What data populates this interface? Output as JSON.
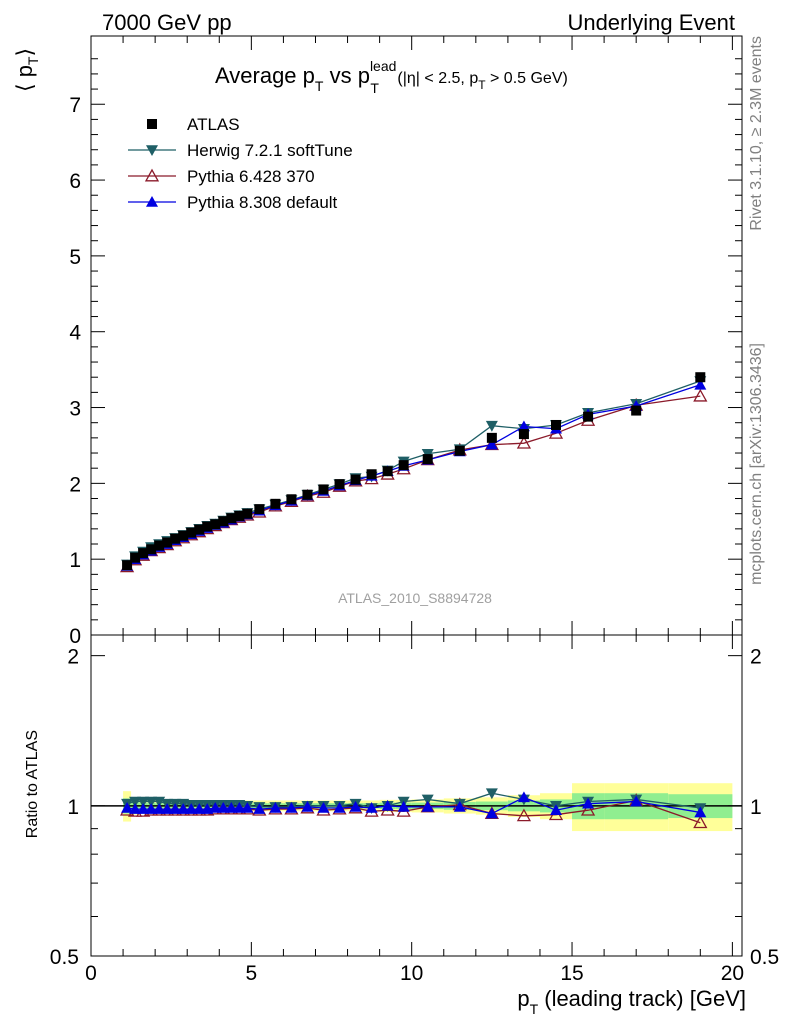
{
  "header": {
    "left": "7000 GeV pp",
    "right": "Underlying Event"
  },
  "title": {
    "main": "Average p",
    "sub": "T",
    "mid": " vs p",
    "sup": "lead",
    "sub2": "T",
    "cond_pre": " (|η| < 2.5, p",
    "cond_sub": "T",
    "cond_post": " > 0.5 GeV)"
  },
  "side_labels": {
    "rivet": "Rivet 3.1.10, ≥ 2.3M events",
    "mcplots": "mcplots.cern.ch [arXiv:1306.3436]"
  },
  "analysis_id": "ATLAS_2010_S8894728",
  "axes": {
    "ylabel_main": "⟨ p",
    "ylabel_main_sub": "T",
    "ylabel_main_close": "⟩",
    "ylabel_ratio": "Ratio to ATLAS",
    "xlabel": "p",
    "xlabel_sub": "T",
    "xlabel_rest": " (leading track) [GeV]"
  },
  "colors": {
    "atlas": "#000000",
    "herwig": "#1f5f66",
    "pythia6": "#8b1a2a",
    "pythia8": "#0000e0",
    "band_inner": "#90ee90",
    "band_outer": "#ffff99"
  },
  "chart_data": [
    {
      "type": "scatter",
      "title": "Average pT vs pT lead (|η| < 2.5, pT > 0.5 GeV)",
      "xlabel": "pT (leading track) [GeV]",
      "ylabel": "⟨ pT ⟩",
      "xlim": [
        0,
        20.3
      ],
      "ylim": [
        0,
        7.9
      ],
      "x_ticks": [
        0,
        5,
        10,
        15,
        20
      ],
      "y_ticks": [
        0,
        1,
        2,
        3,
        4,
        5,
        6,
        7
      ],
      "legend_position": "top-left",
      "x": [
        1.125,
        1.375,
        1.625,
        1.875,
        2.125,
        2.375,
        2.625,
        2.875,
        3.125,
        3.375,
        3.625,
        3.875,
        4.125,
        4.375,
        4.625,
        4.875,
        5.25,
        5.75,
        6.25,
        6.75,
        7.25,
        7.75,
        8.25,
        8.75,
        9.25,
        9.75,
        10.5,
        11.5,
        12.5,
        13.5,
        14.5,
        15.5,
        17.0,
        19.0
      ],
      "series": [
        {
          "name": "ATLAS",
          "marker": "square",
          "values": [
            0.92,
            1.02,
            1.08,
            1.13,
            1.18,
            1.22,
            1.27,
            1.31,
            1.35,
            1.39,
            1.43,
            1.46,
            1.5,
            1.54,
            1.57,
            1.6,
            1.66,
            1.73,
            1.79,
            1.85,
            1.92,
            1.99,
            2.05,
            2.12,
            2.16,
            2.24,
            2.32,
            2.43,
            2.6,
            2.65,
            2.77,
            2.88,
            2.96,
            3.4
          ]
        },
        {
          "name": "Herwig 7.2.1 softTune",
          "marker": "triangle-down",
          "values": [
            0.93,
            1.04,
            1.1,
            1.16,
            1.2,
            1.24,
            1.28,
            1.32,
            1.36,
            1.4,
            1.44,
            1.47,
            1.51,
            1.55,
            1.58,
            1.61,
            1.66,
            1.72,
            1.78,
            1.85,
            1.92,
            1.99,
            2.07,
            2.09,
            2.17,
            2.29,
            2.39,
            2.45,
            2.76,
            2.72,
            2.77,
            2.93,
            3.05,
            3.35
          ]
        },
        {
          "name": "Pythia 6.428 370",
          "marker": "triangle-open",
          "values": [
            0.9,
            0.99,
            1.05,
            1.11,
            1.15,
            1.19,
            1.24,
            1.28,
            1.32,
            1.36,
            1.4,
            1.44,
            1.48,
            1.52,
            1.55,
            1.58,
            1.62,
            1.7,
            1.76,
            1.83,
            1.88,
            1.96,
            2.03,
            2.06,
            2.12,
            2.19,
            2.31,
            2.44,
            2.51,
            2.53,
            2.66,
            2.83,
            3.03,
            3.15
          ]
        },
        {
          "name": "Pythia 8.308 default",
          "marker": "triangle",
          "values": [
            0.91,
            1.0,
            1.06,
            1.11,
            1.16,
            1.2,
            1.25,
            1.29,
            1.33,
            1.37,
            1.41,
            1.45,
            1.48,
            1.52,
            1.56,
            1.59,
            1.64,
            1.71,
            1.77,
            1.84,
            1.9,
            1.97,
            2.04,
            2.1,
            2.16,
            2.23,
            2.31,
            2.42,
            2.51,
            2.75,
            2.72,
            2.91,
            3.02,
            3.3
          ]
        }
      ]
    },
    {
      "type": "scatter",
      "title": "",
      "xlabel": "pT (leading track) [GeV]",
      "ylabel": "Ratio to ATLAS",
      "xlim": [
        0,
        20.3
      ],
      "ylim": [
        0.5,
        2.2
      ],
      "y_scale": "log",
      "x_ticks": [
        0,
        5,
        10,
        15,
        20
      ],
      "y_ticks": [
        0.5,
        1,
        2
      ],
      "reference_line": 1,
      "bands": {
        "x_edges": [
          1.0,
          1.25,
          1.5,
          1.75,
          2.0,
          2.25,
          2.5,
          2.75,
          3.0,
          3.25,
          3.5,
          3.75,
          4.0,
          4.25,
          4.5,
          4.75,
          5.0,
          5.5,
          6.0,
          6.5,
          7.0,
          7.5,
          8.0,
          8.5,
          9.0,
          9.5,
          10.0,
          11.0,
          12.0,
          13.0,
          14.0,
          15.0,
          16.0,
          18.0,
          20.0
        ],
        "inner_halfwidth": [
          0.035,
          0.02,
          0.015,
          0.015,
          0.012,
          0.012,
          0.012,
          0.012,
          0.012,
          0.012,
          0.012,
          0.012,
          0.012,
          0.012,
          0.012,
          0.012,
          0.012,
          0.012,
          0.012,
          0.012,
          0.012,
          0.012,
          0.012,
          0.012,
          0.015,
          0.015,
          0.015,
          0.018,
          0.02,
          0.025,
          0.03,
          0.06,
          0.06,
          0.055
        ],
        "outer_halfwidth": [
          0.07,
          0.04,
          0.035,
          0.03,
          0.03,
          0.028,
          0.028,
          0.026,
          0.026,
          0.025,
          0.025,
          0.025,
          0.025,
          0.025,
          0.025,
          0.025,
          0.025,
          0.025,
          0.025,
          0.025,
          0.025,
          0.025,
          0.025,
          0.025,
          0.028,
          0.028,
          0.03,
          0.035,
          0.04,
          0.05,
          0.06,
          0.11,
          0.11,
          0.11
        ]
      },
      "x": [
        1.125,
        1.375,
        1.625,
        1.875,
        2.125,
        2.375,
        2.625,
        2.875,
        3.125,
        3.375,
        3.625,
        3.875,
        4.125,
        4.375,
        4.625,
        4.875,
        5.25,
        5.75,
        6.25,
        6.75,
        7.25,
        7.75,
        8.25,
        8.75,
        9.25,
        9.75,
        10.5,
        11.5,
        12.5,
        13.5,
        14.5,
        15.5,
        17.0,
        19.0
      ],
      "series": [
        {
          "name": "Herwig 7.2.1 softTune",
          "marker": "triangle-down",
          "values": [
            1.01,
            1.02,
            1.02,
            1.02,
            1.02,
            1.01,
            1.01,
            1.01,
            1.005,
            1.005,
            1.005,
            1.005,
            1.005,
            1.005,
            1.005,
            1.0,
            0.995,
            0.995,
            0.995,
            1.0,
            1.0,
            1.0,
            1.01,
            0.99,
            1.0,
            1.02,
            1.03,
            1.01,
            1.06,
            1.03,
            1.0,
            1.02,
            1.03,
            0.99
          ]
        },
        {
          "name": "Pythia 6.428 370",
          "marker": "triangle-open",
          "values": [
            0.98,
            0.975,
            0.975,
            0.98,
            0.98,
            0.98,
            0.98,
            0.98,
            0.98,
            0.98,
            0.98,
            0.985,
            0.985,
            0.985,
            0.985,
            0.985,
            0.98,
            0.985,
            0.985,
            0.99,
            0.98,
            0.985,
            0.99,
            0.975,
            0.98,
            0.975,
            0.995,
            1.005,
            0.965,
            0.955,
            0.96,
            0.98,
            1.025,
            0.925
          ]
        },
        {
          "name": "Pythia 8.308 default",
          "marker": "triangle",
          "values": [
            0.99,
            0.985,
            0.985,
            0.985,
            0.985,
            0.985,
            0.985,
            0.985,
            0.985,
            0.985,
            0.985,
            0.99,
            0.99,
            0.99,
            0.99,
            0.99,
            0.985,
            0.99,
            0.99,
            0.995,
            0.99,
            0.99,
            0.995,
            0.99,
            1.0,
            0.995,
            0.995,
            0.995,
            0.965,
            1.04,
            0.98,
            1.01,
            1.02,
            0.97
          ]
        }
      ]
    }
  ]
}
